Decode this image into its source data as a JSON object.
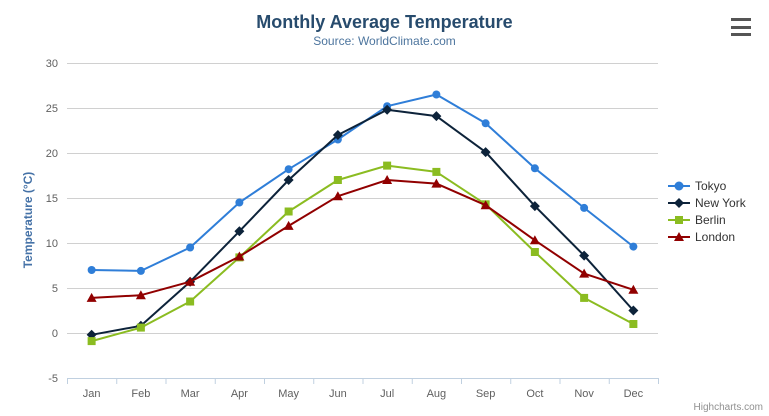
{
  "chart_data": {
    "type": "line",
    "title": "Monthly Average Temperature",
    "subtitle": "Source: WorldClimate.com",
    "xlabel": "",
    "ylabel": "Temperature (°C)",
    "categories": [
      "Jan",
      "Feb",
      "Mar",
      "Apr",
      "May",
      "Jun",
      "Jul",
      "Aug",
      "Sep",
      "Oct",
      "Nov",
      "Dec"
    ],
    "series": [
      {
        "name": "Tokyo",
        "color": "#2f7ed8",
        "marker": "circle",
        "values": [
          7.0,
          6.9,
          9.5,
          14.5,
          18.2,
          21.5,
          25.2,
          26.5,
          23.3,
          18.3,
          13.9,
          9.6
        ]
      },
      {
        "name": "New York",
        "color": "#0d233a",
        "marker": "diamond",
        "values": [
          -0.2,
          0.8,
          5.7,
          11.3,
          17.0,
          22.0,
          24.8,
          24.1,
          20.1,
          14.1,
          8.6,
          2.5
        ]
      },
      {
        "name": "Berlin",
        "color": "#8bbc21",
        "marker": "square",
        "values": [
          -0.9,
          0.6,
          3.5,
          8.4,
          13.5,
          17.0,
          18.6,
          17.9,
          14.3,
          9.0,
          3.9,
          1.0
        ]
      },
      {
        "name": "London",
        "color": "#910000",
        "marker": "triangle",
        "values": [
          3.9,
          4.2,
          5.7,
          8.5,
          11.9,
          15.2,
          17.0,
          16.6,
          14.2,
          10.3,
          6.6,
          4.8
        ]
      }
    ],
    "ylim": [
      -5,
      30
    ],
    "ytick_step": 5,
    "grid": true,
    "legend_position": "right",
    "grid_color": "#d0d0d0",
    "axis_line_color": "#c0d0e0"
  },
  "credits": {
    "label": "Highcharts.com"
  }
}
